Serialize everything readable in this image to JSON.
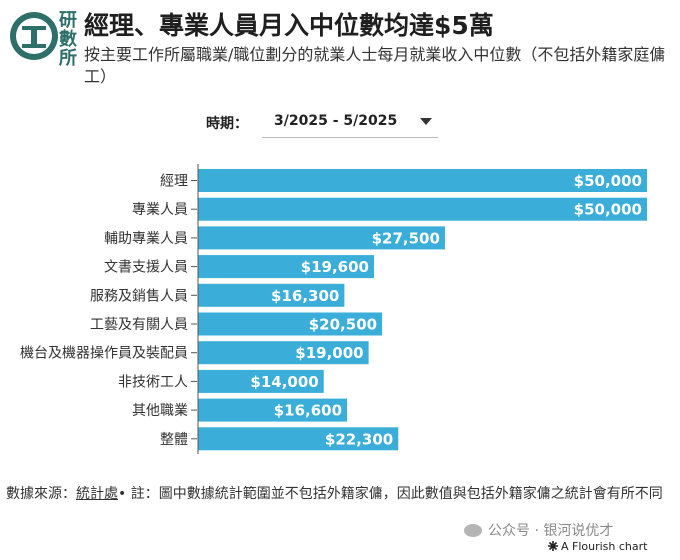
{
  "header": {
    "title": "經理、專業人員月入中位數均達$5萬",
    "subtitle": "按主要工作所屬職業/職位劃分的就業人士每月就業收入中位數（不包括外籍家庭傭工）",
    "logo_text": [
      "研",
      "數",
      "所"
    ]
  },
  "filter": {
    "label": "時期：",
    "selected": "3/2025 - 5/2025"
  },
  "chart_data": {
    "type": "bar",
    "orientation": "horizontal",
    "categories": [
      "經理",
      "專業人員",
      "輔助專業人員",
      "文書支援人員",
      "服務及銷售人員",
      "工藝及有關人員",
      "機台及機器操作員及裝配員",
      "非技術工人",
      "其他職業",
      "整體"
    ],
    "values": [
      50000,
      50000,
      27500,
      19600,
      16300,
      20500,
      19000,
      14000,
      16600,
      22300
    ],
    "value_labels": [
      "$50,000",
      "$50,000",
      "$27,500",
      "$19,600",
      "$16,300",
      "$20,500",
      "$19,000",
      "$14,000",
      "$16,600",
      "$22,300"
    ],
    "xlim": [
      0,
      50000
    ],
    "grid": false,
    "color": "#3aaed8"
  },
  "footer": {
    "source_prefix": "數據來源：",
    "source_link": "統計處",
    "note": "• 註：圖中數據統計範圍並不包括外籍家傭，因此數值與包括外籍家傭之統計會有所不同",
    "watermark": "公众号 · 银河说优才",
    "credit": "A Flourish chart"
  }
}
